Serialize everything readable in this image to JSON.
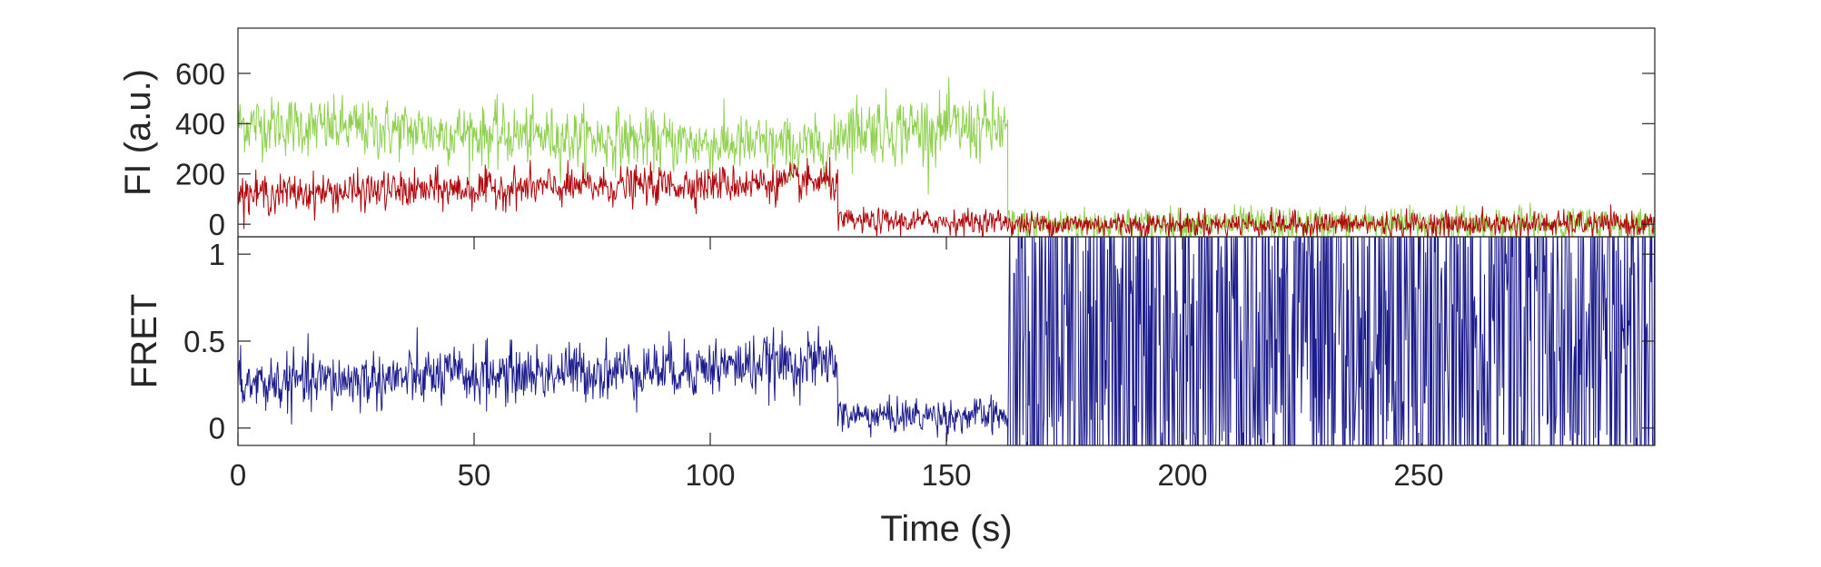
{
  "chart_data": [
    {
      "type": "line",
      "ylabel": "FI (a.u.)",
      "xlim": [
        0,
        300
      ],
      "ylim": [
        -50,
        780
      ],
      "yticks": [
        0,
        200,
        400,
        600
      ],
      "ytick_labels": [
        "0",
        "200",
        "400",
        "600"
      ],
      "series": [
        {
          "color": "#8fd14f",
          "segments": [
            {
              "x_start": 0,
              "x_end": 127,
              "y_start": 400,
              "y_end": 300,
              "noise": 70
            },
            {
              "x_start": 127,
              "x_end": 163,
              "y_start": 380,
              "y_end": 380,
              "noise": 80
            },
            {
              "x_start": 163,
              "x_end": 300,
              "y_start": 0,
              "y_end": 0,
              "noise": 40
            }
          ]
        },
        {
          "color": "#b0050a",
          "segments": [
            {
              "x_start": 0,
              "x_end": 127,
              "y_start": 120,
              "y_end": 170,
              "noise": 45
            },
            {
              "x_start": 127,
              "x_end": 163,
              "y_start": 10,
              "y_end": 10,
              "noise": 30
            },
            {
              "x_start": 163,
              "x_end": 300,
              "y_start": 0,
              "y_end": 0,
              "noise": 30
            }
          ]
        }
      ]
    },
    {
      "type": "line",
      "xlabel": "Time (s)",
      "ylabel": "FRET",
      "xlim": [
        0,
        300
      ],
      "ylim": [
        -0.1,
        1.1
      ],
      "xticks": [
        0,
        50,
        100,
        150,
        200,
        250
      ],
      "xtick_labels": [
        "0",
        "50",
        "100",
        "150",
        "200",
        "250"
      ],
      "yticks": [
        0,
        0.5,
        1
      ],
      "ytick_labels": [
        "0",
        "0.5",
        "1"
      ],
      "series": [
        {
          "color": "#1c1c8c",
          "segments": [
            {
              "x_start": 0,
              "x_end": 127,
              "y_start": 0.25,
              "y_end": 0.38,
              "noise": 0.1
            },
            {
              "x_start": 127,
              "x_end": 163,
              "y_start": 0.07,
              "y_end": 0.07,
              "noise": 0.06
            },
            {
              "x_start": 163,
              "x_end": 300,
              "y_start": 0.5,
              "y_end": 0.5,
              "noise": 1.5
            }
          ]
        }
      ]
    }
  ]
}
